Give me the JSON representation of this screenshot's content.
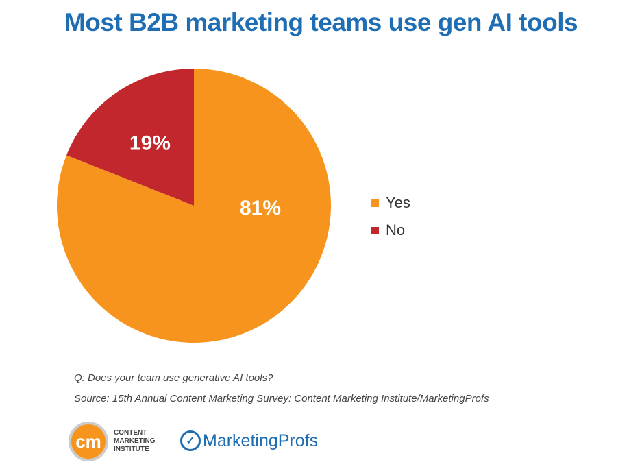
{
  "chart_data": {
    "type": "pie",
    "title": "Most B2B marketing teams use gen AI tools",
    "slices": [
      {
        "label": "Yes",
        "value": 81,
        "data_label": "81%",
        "color": "#f7941d"
      },
      {
        "label": "No",
        "value": 19,
        "data_label": "19%",
        "color": "#c1272d"
      }
    ],
    "legend_position": "right"
  },
  "notes": {
    "question": "Q: Does your team use generative AI tools?",
    "source": "Source: 15th Annual Content Marketing Survey: Content Marketing Institute/MarketingProfs"
  },
  "logos": {
    "cmi_mark": "cm",
    "cmi_text": "CONTENT\nMARKETING\nINSTITUTE",
    "marketingprofs": "MarketingProfs"
  }
}
